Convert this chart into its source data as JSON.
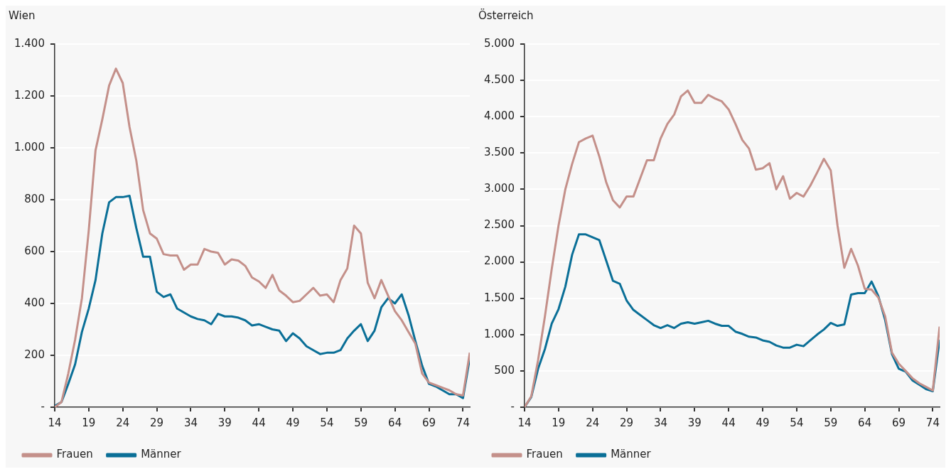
{
  "chart_data": [
    {
      "type": "line",
      "title": "Wien",
      "x": [
        14,
        15,
        16,
        17,
        18,
        19,
        20,
        21,
        22,
        23,
        24,
        25,
        26,
        27,
        28,
        29,
        30,
        31,
        32,
        33,
        34,
        35,
        36,
        37,
        38,
        39,
        40,
        41,
        42,
        43,
        44,
        45,
        46,
        47,
        48,
        49,
        50,
        51,
        52,
        53,
        54,
        55,
        56,
        57,
        58,
        59,
        60,
        61,
        62,
        63,
        64,
        65,
        66,
        67,
        68,
        69,
        70,
        71,
        72,
        73,
        74,
        75
      ],
      "series": [
        {
          "name": "Frauen",
          "color": "#c4908a",
          "values": [
            0,
            20,
            130,
            260,
            420,
            680,
            990,
            1110,
            1240,
            1305,
            1250,
            1080,
            950,
            760,
            670,
            650,
            590,
            585,
            585,
            530,
            550,
            550,
            610,
            600,
            595,
            550,
            570,
            565,
            545,
            500,
            485,
            460,
            510,
            450,
            430,
            405,
            410,
            435,
            460,
            430,
            435,
            405,
            490,
            535,
            700,
            670,
            480,
            420,
            490,
            430,
            370,
            335,
            290,
            245,
            130,
            95,
            85,
            75,
            65,
            50,
            45,
            210
          ]
        },
        {
          "name": "Männer",
          "color": "#0a6f97",
          "values": [
            5,
            20,
            90,
            165,
            290,
            380,
            490,
            670,
            790,
            810,
            810,
            815,
            690,
            580,
            580,
            445,
            425,
            435,
            380,
            365,
            350,
            340,
            335,
            320,
            360,
            350,
            350,
            345,
            335,
            315,
            320,
            310,
            300,
            295,
            255,
            285,
            265,
            235,
            220,
            205,
            210,
            210,
            220,
            265,
            295,
            320,
            255,
            295,
            385,
            420,
            400,
            435,
            355,
            255,
            160,
            90,
            80,
            65,
            50,
            50,
            35,
            190
          ]
        }
      ],
      "xlim": [
        14,
        75
      ],
      "xticks": [
        14,
        19,
        24,
        29,
        34,
        39,
        44,
        49,
        54,
        59,
        64,
        69,
        74
      ],
      "ylim": [
        0,
        1400
      ],
      "yticks": [
        {
          "value": 0,
          "label": "-"
        },
        200,
        400,
        600,
        800,
        {
          "value": 1000,
          "label": "1.000"
        },
        {
          "value": 1200,
          "label": "1.200"
        },
        {
          "value": 1400,
          "label": "1.400"
        }
      ],
      "grid": "y",
      "legend": "bottom left"
    },
    {
      "type": "line",
      "title": "Österreich",
      "x": [
        14,
        15,
        16,
        17,
        18,
        19,
        20,
        21,
        22,
        23,
        24,
        25,
        26,
        27,
        28,
        29,
        30,
        31,
        32,
        33,
        34,
        35,
        36,
        37,
        38,
        39,
        40,
        41,
        42,
        43,
        44,
        45,
        46,
        47,
        48,
        49,
        50,
        51,
        52,
        53,
        54,
        55,
        56,
        57,
        58,
        59,
        60,
        61,
        62,
        63,
        64,
        65,
        66,
        67,
        68,
        69,
        70,
        71,
        72,
        73,
        74,
        75
      ],
      "series": [
        {
          "name": "Frauen",
          "color": "#c4908a",
          "values": [
            0,
            150,
            650,
            1250,
            1900,
            2500,
            3000,
            3350,
            3650,
            3700,
            3740,
            3450,
            3100,
            2850,
            2750,
            2900,
            2900,
            3150,
            3400,
            3400,
            3700,
            3900,
            4030,
            4280,
            4360,
            4190,
            4190,
            4300,
            4250,
            4210,
            4100,
            3900,
            3680,
            3560,
            3270,
            3290,
            3360,
            3000,
            3180,
            2870,
            2950,
            2900,
            3050,
            3230,
            3420,
            3260,
            2500,
            1920,
            2180,
            1950,
            1630,
            1620,
            1510,
            1250,
            750,
            600,
            500,
            400,
            330,
            280,
            230,
            1110
          ]
        },
        {
          "name": "Männer",
          "color": "#0a6f97",
          "values": [
            0,
            140,
            530,
            800,
            1150,
            1350,
            1660,
            2100,
            2380,
            2380,
            2340,
            2300,
            2020,
            1740,
            1700,
            1470,
            1340,
            1270,
            1200,
            1130,
            1090,
            1130,
            1090,
            1150,
            1170,
            1150,
            1170,
            1190,
            1150,
            1120,
            1120,
            1040,
            1010,
            970,
            960,
            920,
            900,
            850,
            820,
            820,
            860,
            840,
            920,
            1000,
            1070,
            1160,
            1120,
            1140,
            1550,
            1570,
            1570,
            1730,
            1530,
            1200,
            730,
            530,
            490,
            370,
            310,
            250,
            220,
            930
          ]
        }
      ],
      "xlim": [
        14,
        75
      ],
      "xticks": [
        14,
        19,
        24,
        29,
        34,
        39,
        44,
        49,
        54,
        59,
        64,
        69,
        74
      ],
      "ylim": [
        0,
        5000
      ],
      "yticks": [
        {
          "value": 0,
          "label": "-"
        },
        500,
        {
          "value": 1000,
          "label": "1.000"
        },
        {
          "value": 1500,
          "label": "1.500"
        },
        {
          "value": 2000,
          "label": "2.000"
        },
        {
          "value": 2500,
          "label": "2.500"
        },
        {
          "value": 3000,
          "label": "3.000"
        },
        {
          "value": 3500,
          "label": "3.500"
        },
        {
          "value": 4000,
          "label": "4.000"
        },
        {
          "value": 4500,
          "label": "4.500"
        },
        {
          "value": 5000,
          "label": "5.000"
        }
      ],
      "grid": "y",
      "legend": "bottom left"
    }
  ]
}
